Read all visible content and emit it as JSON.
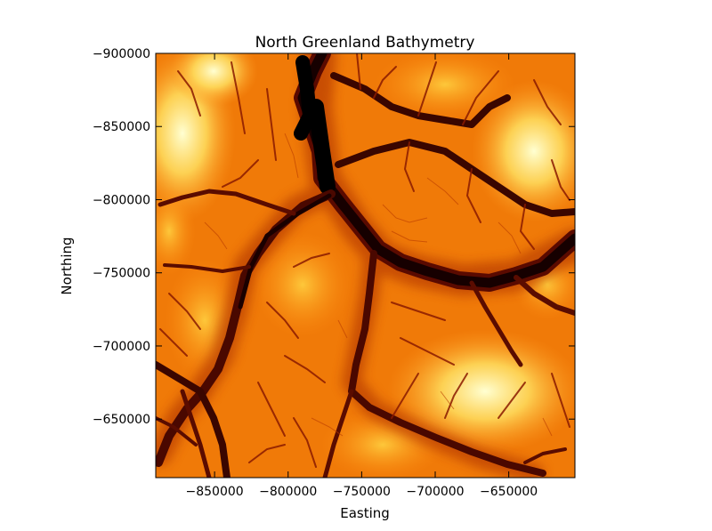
{
  "chart_data": {
    "type": "heatmap",
    "title": "North Greenland Bathymetry",
    "xlabel": "Easting",
    "ylabel": "Northing",
    "xlim": [
      -890000,
      -605000
    ],
    "ylim": [
      -610000,
      -900000
    ],
    "y_inverted": true,
    "colormap": "afmhot",
    "xticks": [
      {
        "value": -850000,
        "label": "−850000"
      },
      {
        "value": -800000,
        "label": "−800000"
      },
      {
        "value": -750000,
        "label": "−750000"
      },
      {
        "value": -700000,
        "label": "−700000"
      },
      {
        "value": -650000,
        "label": "−650000"
      }
    ],
    "yticks": [
      {
        "value": -900000,
        "label": "−900000"
      },
      {
        "value": -850000,
        "label": "−850000"
      },
      {
        "value": -800000,
        "label": "−800000"
      },
      {
        "value": -750000,
        "label": "−750000"
      },
      {
        "value": -700000,
        "label": "−700000"
      },
      {
        "value": -650000,
        "label": "−650000"
      }
    ],
    "grid": false,
    "colors": {
      "deep": "#000000",
      "mid_dark": "#8a1400",
      "mid": "#e06a00",
      "shallow": "#ff9e1e",
      "high": "#ffd84a",
      "peak": "#ffffc8"
    }
  }
}
